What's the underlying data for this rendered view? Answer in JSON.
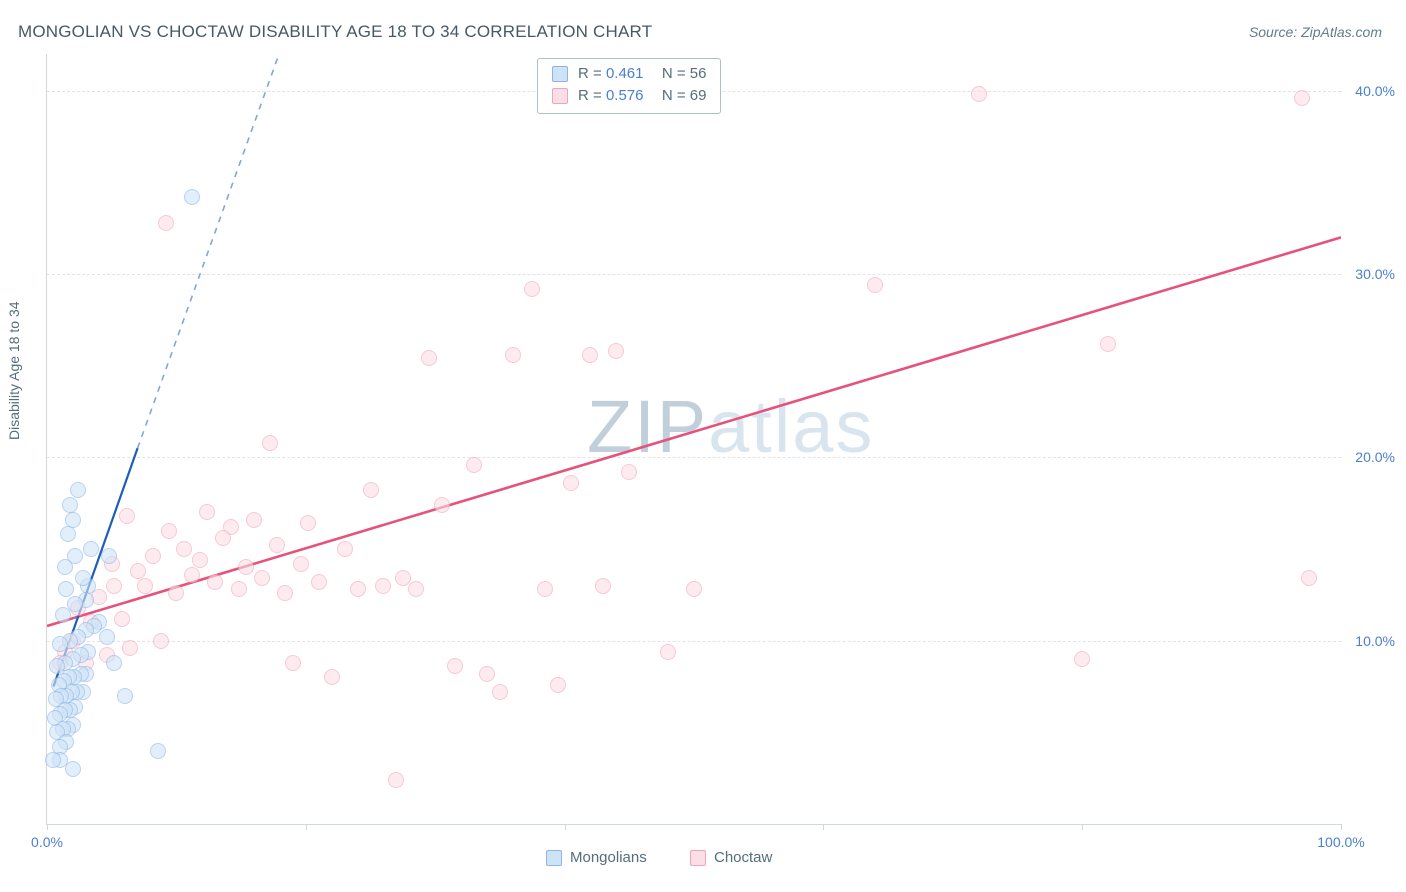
{
  "title": "MONGOLIAN VS CHOCTAW DISABILITY AGE 18 TO 34 CORRELATION CHART",
  "source": "Source: ZipAtlas.com",
  "ylabel": "Disability Age 18 to 34",
  "watermark": {
    "bold": "ZIP",
    "light": "atlas"
  },
  "chart": {
    "type": "scatter",
    "xlim": [
      0,
      100
    ],
    "ylim": [
      0,
      42
    ],
    "x_ticks": [
      0,
      20,
      40,
      60,
      80,
      100
    ],
    "x_tick_labels": {
      "0": "0.0%",
      "100": "100.0%"
    },
    "y_gridlines": [
      10,
      20,
      30,
      40
    ],
    "y_tick_labels": {
      "10": "10.0%",
      "20": "20.0%",
      "30": "30.0%",
      "40": "40.0%"
    },
    "background_color": "#ffffff",
    "grid_color": "#e0e4e8",
    "point_radius": 8,
    "point_border_width": 1.4,
    "series": [
      {
        "name": "Mongolians",
        "fill": "#cfe3f7",
        "stroke": "#8bb6e6",
        "fill_opacity": 0.6,
        "R": "0.461",
        "N": "56",
        "trend": {
          "x1": 0.5,
          "y1": 7.5,
          "x2_solid": 7,
          "y2_solid": 20.5,
          "x2_dash": 22,
          "y2_dash": 50,
          "solid_color": "#1f5eb5",
          "dash_color": "#7ea8dc",
          "width": 2.2
        },
        "points": [
          [
            0.5,
            3.5
          ],
          [
            1.0,
            3.5
          ],
          [
            1.0,
            4.2
          ],
          [
            1.5,
            4.5
          ],
          [
            0.8,
            5.0
          ],
          [
            1.2,
            5.2
          ],
          [
            1.6,
            5.2
          ],
          [
            2.0,
            5.4
          ],
          [
            0.6,
            5.8
          ],
          [
            1.0,
            6.0
          ],
          [
            1.4,
            6.2
          ],
          [
            1.8,
            6.2
          ],
          [
            2.2,
            6.4
          ],
          [
            0.7,
            6.8
          ],
          [
            1.1,
            7.0
          ],
          [
            1.5,
            7.0
          ],
          [
            1.9,
            7.2
          ],
          [
            2.3,
            7.2
          ],
          [
            2.8,
            7.2
          ],
          [
            0.9,
            7.6
          ],
          [
            1.3,
            7.8
          ],
          [
            1.7,
            8.0
          ],
          [
            2.1,
            8.0
          ],
          [
            2.6,
            8.2
          ],
          [
            3.0,
            8.2
          ],
          [
            0.8,
            8.6
          ],
          [
            1.4,
            8.8
          ],
          [
            2.0,
            9.0
          ],
          [
            2.6,
            9.2
          ],
          [
            3.2,
            9.4
          ],
          [
            1.0,
            9.8
          ],
          [
            1.8,
            10.0
          ],
          [
            2.4,
            10.2
          ],
          [
            3.0,
            10.6
          ],
          [
            3.6,
            10.8
          ],
          [
            1.2,
            11.4
          ],
          [
            2.2,
            12.0
          ],
          [
            3.0,
            12.2
          ],
          [
            1.5,
            12.8
          ],
          [
            2.8,
            13.4
          ],
          [
            1.4,
            14.0
          ],
          [
            2.2,
            14.6
          ],
          [
            3.4,
            15.0
          ],
          [
            1.6,
            15.8
          ],
          [
            2.0,
            16.6
          ],
          [
            1.8,
            17.4
          ],
          [
            2.4,
            18.2
          ],
          [
            3.2,
            13.0
          ],
          [
            4.0,
            11.0
          ],
          [
            4.6,
            10.2
          ],
          [
            5.2,
            8.8
          ],
          [
            6.0,
            7.0
          ],
          [
            8.6,
            4.0
          ],
          [
            4.8,
            14.6
          ],
          [
            2.0,
            3.0
          ],
          [
            11.2,
            34.2
          ]
        ]
      },
      {
        "name": "Choctaw",
        "fill": "#fcdfe6",
        "stroke": "#f2a5ba",
        "fill_opacity": 0.6,
        "R": "0.576",
        "N": "69",
        "trend": {
          "x1": 0,
          "y1": 10.8,
          "x2": 100,
          "y2": 32.0,
          "color": "#e6537a",
          "width": 2.6
        },
        "points": [
          [
            1.0,
            8.8
          ],
          [
            1.4,
            9.4
          ],
          [
            2.0,
            10.0
          ],
          [
            2.4,
            11.8
          ],
          [
            3.0,
            8.8
          ],
          [
            3.4,
            11.0
          ],
          [
            4.0,
            12.4
          ],
          [
            4.6,
            9.2
          ],
          [
            5.2,
            13.0
          ],
          [
            5.8,
            11.2
          ],
          [
            6.4,
            9.6
          ],
          [
            7.0,
            13.8
          ],
          [
            7.6,
            13.0
          ],
          [
            8.2,
            14.6
          ],
          [
            8.8,
            10.0
          ],
          [
            9.4,
            16.0
          ],
          [
            10.0,
            12.6
          ],
          [
            10.6,
            15.0
          ],
          [
            11.2,
            13.6
          ],
          [
            11.8,
            14.4
          ],
          [
            12.4,
            17.0
          ],
          [
            13.0,
            13.2
          ],
          [
            13.6,
            15.6
          ],
          [
            14.2,
            16.2
          ],
          [
            14.8,
            12.8
          ],
          [
            15.4,
            14.0
          ],
          [
            16.0,
            16.6
          ],
          [
            16.6,
            13.4
          ],
          [
            17.2,
            20.8
          ],
          [
            17.8,
            15.2
          ],
          [
            18.4,
            12.6
          ],
          [
            19.0,
            8.8
          ],
          [
            19.6,
            14.2
          ],
          [
            20.2,
            16.4
          ],
          [
            21.0,
            13.2
          ],
          [
            22.0,
            8.0
          ],
          [
            23.0,
            15.0
          ],
          [
            24.0,
            12.8
          ],
          [
            25.0,
            18.2
          ],
          [
            26.0,
            13.0
          ],
          [
            27.0,
            2.4
          ],
          [
            27.5,
            13.4
          ],
          [
            28.5,
            12.8
          ],
          [
            29.5,
            25.4
          ],
          [
            30.5,
            17.4
          ],
          [
            31.5,
            8.6
          ],
          [
            33.0,
            19.6
          ],
          [
            34.0,
            8.2
          ],
          [
            35.0,
            7.2
          ],
          [
            36.0,
            25.6
          ],
          [
            37.5,
            29.2
          ],
          [
            38.5,
            12.8
          ],
          [
            39.5,
            7.6
          ],
          [
            40.5,
            18.6
          ],
          [
            42.0,
            25.6
          ],
          [
            43.0,
            13.0
          ],
          [
            44.0,
            25.8
          ],
          [
            45.0,
            19.2
          ],
          [
            48.0,
            9.4
          ],
          [
            50.0,
            12.8
          ],
          [
            64.0,
            29.4
          ],
          [
            72.0,
            39.8
          ],
          [
            80.0,
            9.0
          ],
          [
            82.0,
            26.2
          ],
          [
            97.0,
            39.6
          ],
          [
            97.5,
            13.4
          ],
          [
            9.2,
            32.8
          ],
          [
            6.2,
            16.8
          ],
          [
            5.0,
            14.2
          ]
        ]
      }
    ]
  },
  "legend_bottom": [
    {
      "label": "Mongolians",
      "fill": "#cfe3f7",
      "stroke": "#8bb6e6"
    },
    {
      "label": "Choctaw",
      "fill": "#fcdfe6",
      "stroke": "#f2a5ba"
    }
  ]
}
